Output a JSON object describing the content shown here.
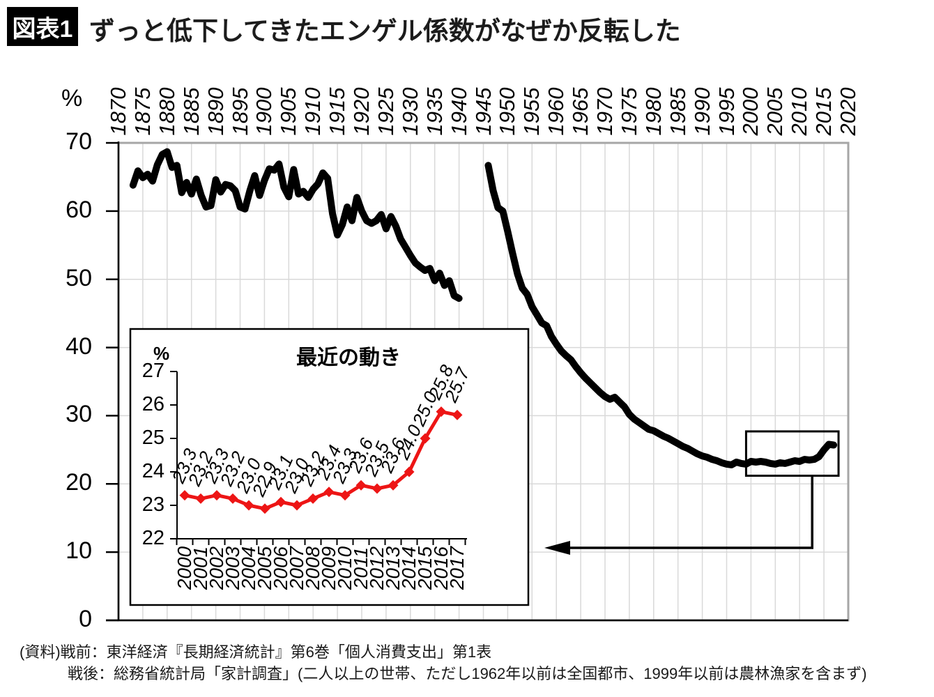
{
  "header": {
    "badge": "図表1",
    "title": "ずっと低下してきたエンゲル係数がなぜか反転した"
  },
  "footer": {
    "line1": "(資料)戦前：東洋経済『長期経済統計』第6巻「個人消費支出」第1表",
    "line2": "戦後：総務省統計局「家計調査」(二人以上の世帯、ただし1962年以前は全国都市、1999年以前は農林漁家を含まず)"
  },
  "chart_data": {
    "type": "line",
    "title": "エンゲル係数",
    "unit_label": "%",
    "line_color": "#000000",
    "grid_color": "#d9d9d9",
    "border_color": "#a6a6a6",
    "grid": true,
    "y_axis": {
      "min": 0,
      "max": 70,
      "ticks": [
        0,
        10,
        20,
        30,
        40,
        50,
        60,
        70
      ]
    },
    "x_axis": {
      "min": 1870,
      "max": 2020,
      "ticks": [
        1870,
        1875,
        1880,
        1885,
        1890,
        1895,
        1900,
        1905,
        1910,
        1915,
        1920,
        1925,
        1930,
        1935,
        1940,
        1945,
        1950,
        1955,
        1960,
        1965,
        1970,
        1975,
        1980,
        1985,
        1990,
        1995,
        2000,
        2005,
        2010,
        2015,
        2020
      ]
    },
    "series": [
      {
        "name": "戦前",
        "start_year": 1873,
        "values": [
          63.8,
          65.9,
          64.9,
          65.4,
          64.4,
          66.8,
          68.3,
          68.7,
          66.4,
          66.7,
          62.7,
          64.2,
          62.5,
          64.7,
          62.3,
          60.6,
          60.8,
          64.6,
          62.8,
          63.9,
          63.7,
          63.0,
          60.6,
          60.3,
          63.0,
          65.2,
          62.3,
          64.5,
          66.2,
          66.0,
          66.9,
          63.5,
          62.1,
          66.1,
          62.5,
          62.9,
          62.0,
          63.2,
          64.0,
          65.6,
          64.8,
          59.6,
          56.5,
          58.0,
          60.6,
          58.6,
          62.0,
          60.0,
          58.6,
          58.2,
          58.6,
          59.5,
          57.4,
          59.2,
          57.8,
          55.9,
          54.7,
          53.5,
          52.4,
          51.8,
          51.3,
          51.6,
          49.8,
          50.9,
          49.1,
          49.8,
          47.6,
          47.2
        ]
      },
      {
        "name": "戦後",
        "start_year": 1946,
        "values": [
          66.7,
          63.0,
          60.5,
          60.0,
          57.0,
          53.8,
          50.8,
          48.7,
          47.8,
          46.0,
          44.8,
          43.6,
          43.2,
          41.6,
          40.5,
          39.5,
          38.8,
          38.2,
          37.2,
          36.3,
          35.5,
          34.8,
          34.1,
          33.4,
          32.8,
          32.4,
          32.7,
          32.0,
          31.3,
          30.2,
          29.5,
          29.0,
          28.5,
          28.0,
          27.8,
          27.4,
          27.0,
          26.7,
          26.3,
          25.9,
          25.5,
          25.2,
          24.8,
          24.4,
          24.1,
          23.9,
          23.6,
          23.4,
          23.1,
          22.9,
          22.8,
          23.2,
          23.0,
          22.9,
          23.3,
          23.2,
          23.3,
          23.2,
          23.0,
          22.9,
          23.1,
          23.0,
          23.2,
          23.4,
          23.3,
          23.6,
          23.5,
          23.6,
          24.0,
          25.0,
          25.8,
          25.7
        ]
      }
    ],
    "highlight_box": {
      "x_range": [
        1999,
        2018
      ],
      "y_range": [
        21.2,
        27.7
      ]
    },
    "inset": {
      "title": "最近の動き",
      "type": "line",
      "unit_label": "%",
      "line_color": "#ed1515",
      "y_axis": {
        "min": 22,
        "max": 27,
        "ticks": [
          22,
          23,
          24,
          25,
          26,
          27
        ]
      },
      "years": [
        2000,
        2001,
        2002,
        2003,
        2004,
        2005,
        2006,
        2007,
        2008,
        2009,
        2010,
        2011,
        2012,
        2013,
        2014,
        2015,
        2016,
        2017
      ],
      "values": [
        23.3,
        23.2,
        23.3,
        23.2,
        23.0,
        22.9,
        23.1,
        23.0,
        23.2,
        23.4,
        23.3,
        23.6,
        23.5,
        23.6,
        24.0,
        25.0,
        25.8,
        25.7
      ],
      "data_labels": [
        "23.3",
        "23.2",
        "23.3",
        "23.2",
        "23.0",
        "22.9",
        "23.1",
        "23.0",
        "23.2",
        "23.4",
        "23.3",
        "23.6",
        "23.5",
        "23.6",
        "24.0",
        "25.0",
        "25.8",
        "25.7"
      ]
    }
  }
}
